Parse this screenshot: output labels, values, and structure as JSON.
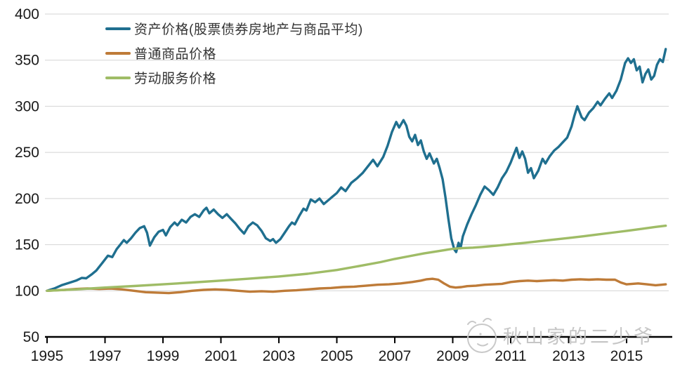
{
  "chart_data": {
    "type": "line",
    "title": "",
    "xlabel": "",
    "ylabel": "",
    "x_axis": {
      "min": 1994.9,
      "max": 2016.6,
      "ticks": [
        1995,
        1997,
        1999,
        2001,
        2003,
        2005,
        2007,
        2009,
        2011,
        2013,
        2015
      ]
    },
    "y_axis": {
      "min": 50,
      "max": 400,
      "ticks": [
        50,
        100,
        150,
        200,
        250,
        300,
        350,
        400
      ]
    },
    "grid": "horizontal",
    "legend_position": "top-left",
    "colors": {
      "grid": "#d4d4d4",
      "axis": "#000000",
      "tick_label": "#1a1a1a"
    },
    "series": [
      {
        "name": "资产价格(股票债券房地产与商品平均)",
        "color": "#1f6f8f",
        "points": [
          [
            1995.0,
            100
          ],
          [
            1995.25,
            102.5
          ],
          [
            1995.5,
            106
          ],
          [
            1995.75,
            108.5
          ],
          [
            1996.0,
            111
          ],
          [
            1996.2,
            114
          ],
          [
            1996.35,
            113.5
          ],
          [
            1996.55,
            118
          ],
          [
            1996.7,
            122
          ],
          [
            1996.9,
            130
          ],
          [
            1997.1,
            138
          ],
          [
            1997.25,
            136.5
          ],
          [
            1997.4,
            145
          ],
          [
            1997.55,
            151
          ],
          [
            1997.65,
            155
          ],
          [
            1997.75,
            152
          ],
          [
            1997.9,
            157
          ],
          [
            1998.05,
            163
          ],
          [
            1998.2,
            168
          ],
          [
            1998.35,
            170
          ],
          [
            1998.45,
            163
          ],
          [
            1998.55,
            149
          ],
          [
            1998.7,
            158
          ],
          [
            1998.85,
            164
          ],
          [
            1999.0,
            166
          ],
          [
            1999.1,
            160
          ],
          [
            1999.25,
            169
          ],
          [
            1999.4,
            174
          ],
          [
            1999.5,
            171
          ],
          [
            1999.65,
            177
          ],
          [
            1999.8,
            174
          ],
          [
            1999.95,
            180
          ],
          [
            2000.1,
            183
          ],
          [
            2000.25,
            180
          ],
          [
            2000.4,
            187
          ],
          [
            2000.5,
            190
          ],
          [
            2000.6,
            184
          ],
          [
            2000.75,
            188
          ],
          [
            2000.9,
            183
          ],
          [
            2001.05,
            179
          ],
          [
            2001.2,
            183
          ],
          [
            2001.35,
            178
          ],
          [
            2001.5,
            173
          ],
          [
            2001.65,
            167
          ],
          [
            2001.8,
            162
          ],
          [
            2001.95,
            170
          ],
          [
            2002.1,
            174
          ],
          [
            2002.25,
            171
          ],
          [
            2002.4,
            165
          ],
          [
            2002.55,
            157
          ],
          [
            2002.7,
            154
          ],
          [
            2002.8,
            156
          ],
          [
            2002.9,
            152
          ],
          [
            2003.05,
            156
          ],
          [
            2003.2,
            163
          ],
          [
            2003.35,
            170
          ],
          [
            2003.45,
            174
          ],
          [
            2003.55,
            172
          ],
          [
            2003.7,
            181
          ],
          [
            2003.85,
            189
          ],
          [
            2003.95,
            187
          ],
          [
            2004.1,
            199
          ],
          [
            2004.25,
            196
          ],
          [
            2004.4,
            200
          ],
          [
            2004.55,
            194
          ],
          [
            2004.7,
            198
          ],
          [
            2004.85,
            202
          ],
          [
            2005.0,
            206
          ],
          [
            2005.15,
            212
          ],
          [
            2005.3,
            208
          ],
          [
            2005.5,
            217
          ],
          [
            2005.7,
            222
          ],
          [
            2005.9,
            228
          ],
          [
            2006.05,
            234
          ],
          [
            2006.25,
            242
          ],
          [
            2006.4,
            235
          ],
          [
            2006.6,
            245
          ],
          [
            2006.75,
            257
          ],
          [
            2006.9,
            272
          ],
          [
            2007.05,
            283
          ],
          [
            2007.15,
            277
          ],
          [
            2007.3,
            285
          ],
          [
            2007.4,
            279
          ],
          [
            2007.5,
            267
          ],
          [
            2007.6,
            262
          ],
          [
            2007.7,
            269
          ],
          [
            2007.8,
            258
          ],
          [
            2007.9,
            263
          ],
          [
            2008.0,
            251
          ],
          [
            2008.1,
            243
          ],
          [
            2008.2,
            249
          ],
          [
            2008.35,
            238
          ],
          [
            2008.45,
            243
          ],
          [
            2008.55,
            233
          ],
          [
            2008.65,
            221
          ],
          [
            2008.75,
            201
          ],
          [
            2008.85,
            178
          ],
          [
            2008.95,
            157
          ],
          [
            2009.05,
            145
          ],
          [
            2009.12,
            142
          ],
          [
            2009.2,
            152
          ],
          [
            2009.27,
            146
          ],
          [
            2009.35,
            159
          ],
          [
            2009.5,
            172
          ],
          [
            2009.65,
            183
          ],
          [
            2009.8,
            193
          ],
          [
            2009.95,
            204
          ],
          [
            2010.1,
            213
          ],
          [
            2010.25,
            209
          ],
          [
            2010.4,
            204
          ],
          [
            2010.55,
            212
          ],
          [
            2010.7,
            222
          ],
          [
            2010.85,
            229
          ],
          [
            2011.0,
            239
          ],
          [
            2011.1,
            247
          ],
          [
            2011.2,
            255
          ],
          [
            2011.3,
            244
          ],
          [
            2011.4,
            251
          ],
          [
            2011.5,
            243
          ],
          [
            2011.6,
            228
          ],
          [
            2011.7,
            233
          ],
          [
            2011.8,
            222
          ],
          [
            2011.95,
            230
          ],
          [
            2012.1,
            243
          ],
          [
            2012.2,
            238
          ],
          [
            2012.35,
            246
          ],
          [
            2012.5,
            252
          ],
          [
            2012.65,
            256
          ],
          [
            2012.8,
            261
          ],
          [
            2012.95,
            266
          ],
          [
            2013.1,
            278
          ],
          [
            2013.2,
            290
          ],
          [
            2013.3,
            300
          ],
          [
            2013.45,
            288
          ],
          [
            2013.55,
            285
          ],
          [
            2013.7,
            293
          ],
          [
            2013.85,
            298
          ],
          [
            2014.0,
            305
          ],
          [
            2014.1,
            301
          ],
          [
            2014.25,
            308
          ],
          [
            2014.4,
            314
          ],
          [
            2014.5,
            309
          ],
          [
            2014.65,
            317
          ],
          [
            2014.8,
            329
          ],
          [
            2014.95,
            347
          ],
          [
            2015.05,
            352
          ],
          [
            2015.15,
            347
          ],
          [
            2015.25,
            351
          ],
          [
            2015.35,
            339
          ],
          [
            2015.45,
            343
          ],
          [
            2015.55,
            326
          ],
          [
            2015.65,
            335
          ],
          [
            2015.75,
            340
          ],
          [
            2015.85,
            329
          ],
          [
            2015.95,
            333
          ],
          [
            2016.05,
            345
          ],
          [
            2016.15,
            351
          ],
          [
            2016.25,
            348
          ],
          [
            2016.35,
            362
          ]
        ]
      },
      {
        "name": "普通商品价格",
        "color": "#be7b38",
        "points": [
          [
            1995.0,
            100
          ],
          [
            1995.3,
            100.5
          ],
          [
            1995.6,
            101
          ],
          [
            1996.0,
            102
          ],
          [
            1996.4,
            102.5
          ],
          [
            1996.8,
            102
          ],
          [
            1997.2,
            102.5
          ],
          [
            1997.6,
            101.5
          ],
          [
            1998.0,
            100
          ],
          [
            1998.4,
            98.5
          ],
          [
            1998.8,
            98
          ],
          [
            1999.2,
            97.5
          ],
          [
            1999.6,
            98.5
          ],
          [
            2000.0,
            100
          ],
          [
            2000.4,
            101
          ],
          [
            2000.8,
            101.5
          ],
          [
            2001.2,
            101
          ],
          [
            2001.6,
            100
          ],
          [
            2002.0,
            99
          ],
          [
            2002.4,
            99.5
          ],
          [
            2002.8,
            99
          ],
          [
            2003.2,
            100
          ],
          [
            2003.6,
            100.5
          ],
          [
            2004.0,
            101.5
          ],
          [
            2004.4,
            102.5
          ],
          [
            2004.8,
            103
          ],
          [
            2005.2,
            104
          ],
          [
            2005.6,
            104.5
          ],
          [
            2006.0,
            105.5
          ],
          [
            2006.4,
            106.5
          ],
          [
            2006.8,
            107
          ],
          [
            2007.2,
            108
          ],
          [
            2007.6,
            109.5
          ],
          [
            2007.9,
            111
          ],
          [
            2008.1,
            112.5
          ],
          [
            2008.3,
            113
          ],
          [
            2008.5,
            112
          ],
          [
            2008.7,
            108
          ],
          [
            2008.9,
            104.5
          ],
          [
            2009.1,
            103.5
          ],
          [
            2009.3,
            104
          ],
          [
            2009.5,
            105
          ],
          [
            2009.8,
            105.5
          ],
          [
            2010.1,
            106.5
          ],
          [
            2010.4,
            107
          ],
          [
            2010.7,
            107.5
          ],
          [
            2011.0,
            109.5
          ],
          [
            2011.3,
            110.5
          ],
          [
            2011.6,
            111
          ],
          [
            2011.9,
            110.5
          ],
          [
            2012.2,
            111
          ],
          [
            2012.5,
            111.5
          ],
          [
            2012.8,
            111
          ],
          [
            2013.1,
            112
          ],
          [
            2013.4,
            112.5
          ],
          [
            2013.7,
            112
          ],
          [
            2014.0,
            112.5
          ],
          [
            2014.3,
            112
          ],
          [
            2014.6,
            112
          ],
          [
            2014.8,
            109
          ],
          [
            2015.0,
            107
          ],
          [
            2015.2,
            107.5
          ],
          [
            2015.4,
            108
          ],
          [
            2015.7,
            107
          ],
          [
            2016.0,
            106
          ],
          [
            2016.2,
            106.5
          ],
          [
            2016.35,
            107
          ]
        ]
      },
      {
        "name": "劳动服务价格",
        "color": "#9fbc66",
        "points": [
          [
            1995.0,
            100
          ],
          [
            1996.0,
            101.5
          ],
          [
            1997.0,
            103.5
          ],
          [
            1998.0,
            105.2
          ],
          [
            1999.0,
            107
          ],
          [
            2000.0,
            109
          ],
          [
            2001.0,
            111
          ],
          [
            2002.0,
            113.2
          ],
          [
            2003.0,
            115.5
          ],
          [
            2004.0,
            118.5
          ],
          [
            2005.0,
            122.5
          ],
          [
            2005.8,
            127
          ],
          [
            2006.5,
            131
          ],
          [
            2007.0,
            134.5
          ],
          [
            2007.5,
            137.5
          ],
          [
            2008.0,
            140.5
          ],
          [
            2008.5,
            143
          ],
          [
            2009.0,
            145.5
          ],
          [
            2009.3,
            146.2
          ],
          [
            2009.7,
            146.8
          ],
          [
            2010.0,
            147.5
          ],
          [
            2010.5,
            148.8
          ],
          [
            2011.0,
            150.5
          ],
          [
            2011.5,
            152
          ],
          [
            2012.0,
            153.8
          ],
          [
            2012.5,
            155.5
          ],
          [
            2013.0,
            157.2
          ],
          [
            2013.5,
            159
          ],
          [
            2014.0,
            161
          ],
          [
            2014.5,
            163
          ],
          [
            2015.0,
            165
          ],
          [
            2015.5,
            167
          ],
          [
            2016.0,
            169.2
          ],
          [
            2016.35,
            170.5
          ]
        ]
      }
    ]
  },
  "watermark": {
    "text": "秋山家的二少爷",
    "icon": "smiley-face-icon",
    "color": "#c6c6c6"
  }
}
